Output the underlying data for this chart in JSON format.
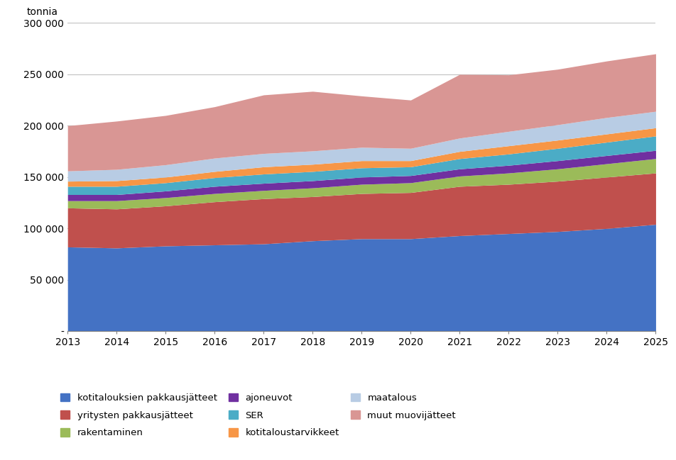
{
  "years": [
    2013,
    2014,
    2015,
    2016,
    2017,
    2018,
    2019,
    2020,
    2021,
    2022,
    2023,
    2024,
    2025
  ],
  "series": [
    {
      "label": "kotitalouksien pakkausjätteet",
      "color": "#4472c4",
      "values": [
        82000,
        81000,
        83000,
        84000,
        85000,
        88000,
        90000,
        90000,
        93000,
        95000,
        97000,
        100000,
        104000
      ]
    },
    {
      "label": "yritysten pakkausjätteet",
      "color": "#c0504d",
      "values": [
        38000,
        38000,
        39000,
        42000,
        44000,
        43000,
        44000,
        45000,
        48000,
        48000,
        49000,
        50000,
        50000
      ]
    },
    {
      "label": "rakentaminen",
      "color": "#9bbb59",
      "values": [
        7000,
        8000,
        8000,
        8000,
        8000,
        8500,
        9000,
        9500,
        10000,
        11000,
        12000,
        13000,
        14000
      ]
    },
    {
      "label": "ajoneuvot",
      "color": "#7030a0",
      "values": [
        6000,
        6000,
        6500,
        7000,
        7000,
        7000,
        7000,
        7000,
        7000,
        7500,
        8000,
        8000,
        8000
      ]
    },
    {
      "label": "SER",
      "color": "#4bacc6",
      "values": [
        8000,
        8000,
        8000,
        8500,
        9000,
        9000,
        9000,
        8500,
        10000,
        11000,
        12000,
        13000,
        14000
      ]
    },
    {
      "label": "kotitaloustarvikkeet",
      "color": "#f79646",
      "values": [
        5000,
        5500,
        5500,
        6000,
        7000,
        7000,
        7000,
        6000,
        7000,
        8000,
        8000,
        8000,
        8000
      ]
    },
    {
      "label": "maatalous",
      "color": "#b8cce4",
      "values": [
        10000,
        11000,
        12000,
        13000,
        13000,
        13000,
        13000,
        12000,
        13000,
        14000,
        15000,
        16000,
        16000
      ]
    },
    {
      "label": "muut muovijätteet",
      "color": "#d99694",
      "values": [
        44000,
        47000,
        48000,
        50000,
        57000,
        58000,
        50000,
        47000,
        62000,
        55000,
        54000,
        55000,
        56000
      ]
    }
  ],
  "ylabel": "tonnia",
  "ylim": [
    0,
    300000
  ],
  "yticks": [
    0,
    50000,
    100000,
    150000,
    200000,
    250000,
    300000
  ],
  "ytick_labels": [
    "-",
    "50 000",
    "100 000",
    "150 000",
    "200 000",
    "250 000",
    "300 000"
  ],
  "background_color": "#ffffff",
  "axis_fontsize": 10,
  "legend_fontsize": 9.5
}
